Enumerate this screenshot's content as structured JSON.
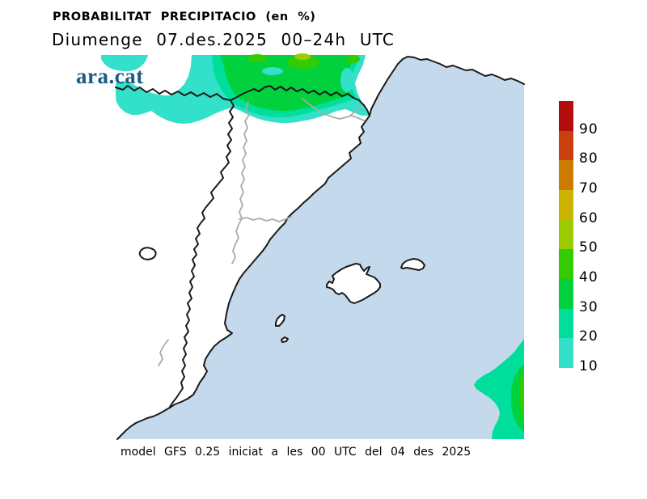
{
  "header": {
    "title": "PROBABILITAT PRECIPITACIO (en %)",
    "subtitle": "Diumenge 07.des.2025 00–24h UTC",
    "logo": "ara.cat"
  },
  "footer": {
    "caption": "model GFS 0.25 iniciat a les 00 UTC del 04 des 2025"
  },
  "colorbar": {
    "unit": "%",
    "labels": [
      "90",
      "80",
      "70",
      "60",
      "50",
      "40",
      "30",
      "20",
      "10"
    ],
    "segments": [
      {
        "range": "90-100",
        "color": "#B40D0D"
      },
      {
        "range": "80-90",
        "color": "#C8400D"
      },
      {
        "range": "70-80",
        "color": "#CC7A00"
      },
      {
        "range": "60-70",
        "color": "#CCB300"
      },
      {
        "range": "50-60",
        "color": "#9CCC00"
      },
      {
        "range": "40-50",
        "color": "#33CC00"
      },
      {
        "range": "30-40",
        "color": "#00D13C"
      },
      {
        "range": "20-30",
        "color": "#00DE9B"
      },
      {
        "range": "10-20",
        "color": "#33E0C9"
      }
    ]
  },
  "palette": {
    "sea": "#C4D9EC",
    "land": "#FFFFFF",
    "coast": "#1A1A1A",
    "border": "#ABABAB",
    "logoBlue": "#1A5A86",
    "p10": "#33E0C9",
    "p20": "#00DE9B",
    "p30": "#00D13C",
    "p40": "#33CC00",
    "p50": "#9CCC00"
  },
  "map": {
    "precipitation_areas": [
      {
        "location": "pyrenees-and-southern-france",
        "levels": "10-50 %"
      },
      {
        "location": "offshore-southeast-corner",
        "levels": "20-50 %"
      },
      {
        "location": "small-northwest-patch",
        "levels": "10-20 %"
      }
    ],
    "features": [
      "catalonia-coast",
      "valencia-coast",
      "french-coast",
      "mallorca",
      "menorca",
      "ibiza",
      "formentera"
    ]
  },
  "chart_data": {
    "type": "map",
    "title": "PROBABILITAT PRECIPITACIO (en %)",
    "subtitle": "Diumenge 07.des.2025 00-24h UTC",
    "legend_values": [
      10,
      20,
      30,
      40,
      50,
      60,
      70,
      80,
      90
    ],
    "legend_unit": "%",
    "source_note": "model GFS 0.25 iniciat a les 00 UTC del 04 des 2025"
  }
}
